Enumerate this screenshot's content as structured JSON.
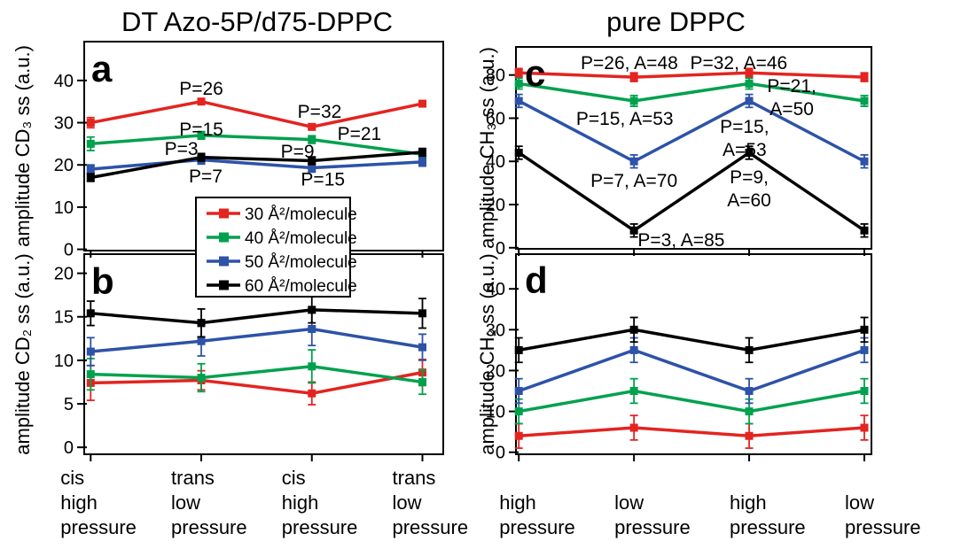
{
  "figure": {
    "column_titles": {
      "left": "DT Azo-5P/d75-DPPC",
      "right": "pure DPPC"
    },
    "legend": {
      "items": [
        {
          "label": "30 Å²/molecule",
          "color": "#e32420"
        },
        {
          "label": "40 Å²/molecule",
          "color": "#00a14e"
        },
        {
          "label": "50 Å²/molecule",
          "color": "#2d52a8"
        },
        {
          "label": "60 Å²/molecule",
          "color": "#000000"
        }
      ]
    }
  },
  "chart_data": [
    {
      "panel": "a",
      "type": "line",
      "panel_label": "a",
      "ylabel": "amplitude CD₃ ss (a.u.)",
      "ylim": [
        -0.3,
        49.2
      ],
      "yticks": [
        0,
        10,
        20,
        30,
        40
      ],
      "categories": [
        "cis\nhigh\npressure",
        "trans\nlow\npressure",
        "cis\nhigh\npressure",
        "trans\nlow\npressure"
      ],
      "x_tick_labels_visible": false,
      "series": [
        {
          "name": "30 Å²/molecule",
          "color": "#e32420",
          "values": [
            30,
            35,
            29,
            34.5
          ],
          "err": [
            1.2,
            0.6,
            0.6,
            0.6
          ]
        },
        {
          "name": "40 Å²/molecule",
          "color": "#00a14e",
          "values": [
            25,
            27,
            26,
            22.5
          ],
          "err": [
            1.6,
            0.9,
            0.9,
            0.9
          ]
        },
        {
          "name": "50 Å²/molecule",
          "color": "#2d52a8",
          "values": [
            19,
            21.2,
            19.3,
            20.7
          ],
          "err": [
            1,
            1,
            1,
            1
          ]
        },
        {
          "name": "60 Å²/molecule",
          "color": "#000000",
          "values": [
            17,
            21.8,
            21,
            23
          ],
          "err": [
            0.9,
            0.9,
            0.9,
            0.9
          ]
        }
      ],
      "annotations": [
        {
          "label": "P=26",
          "color": "#e32420",
          "xi": 1,
          "yv": 38.1
        },
        {
          "label": "P=32",
          "color": "#e32420",
          "xi": 2.07,
          "yv": 32.6
        },
        {
          "label": "P=15",
          "color": "#00a14e",
          "xi": 1,
          "yv": 28.4
        },
        {
          "label": "P=21",
          "color": "#00a14e",
          "xi": 2.43,
          "yv": 27.4
        },
        {
          "label": "P=3",
          "color": "#000000",
          "xi": 0.82,
          "yv": 23.8
        },
        {
          "label": "P=9",
          "color": "#000000",
          "xi": 1.87,
          "yv": 23.2
        },
        {
          "label": "P=7",
          "color": "#2d52a8",
          "xi": 1.04,
          "yv": 17.3
        },
        {
          "label": "P=15",
          "color": "#2d52a8",
          "xi": 2.1,
          "yv": 16.6
        }
      ]
    },
    {
      "panel": "b",
      "type": "line",
      "panel_label": "b",
      "ylabel": "amplitude CD₂ ss (a.u.)",
      "ylim": [
        -0.8,
        22.2
      ],
      "yticks": [
        0,
        5,
        10,
        15,
        20
      ],
      "categories": [
        "cis\nhigh\npressure",
        "trans\nlow\npressure",
        "cis\nhigh\npressure",
        "trans\nlow\npressure"
      ],
      "x_tick_labels_visible": true,
      "series": [
        {
          "name": "30 Å²/molecule",
          "color": "#e32420",
          "values": [
            7.4,
            7.7,
            6.2,
            8.6
          ],
          "err": [
            2,
            1.1,
            1.3,
            1.5
          ]
        },
        {
          "name": "40 Å²/molecule",
          "color": "#00a14e",
          "values": [
            8.4,
            8,
            9.3,
            7.5
          ],
          "err": [
            1.8,
            1.6,
            1.9,
            1.4
          ]
        },
        {
          "name": "50 Å²/molecule",
          "color": "#2d52a8",
          "values": [
            11,
            12.2,
            13.6,
            11.5
          ],
          "err": [
            1.6,
            1.7,
            1.9,
            1.5
          ]
        },
        {
          "name": "60 Å²/molecule",
          "color": "#000000",
          "values": [
            15.4,
            14.3,
            15.8,
            15.4
          ],
          "err": [
            1.4,
            1.6,
            1.5,
            1.7
          ]
        }
      ],
      "annotations": []
    },
    {
      "panel": "c",
      "type": "line",
      "panel_label": "c",
      "ylabel": "amplitude CH₃ ss (a.u.)",
      "ylim": [
        -0.5,
        93
      ],
      "yticks": [
        0,
        20,
        40,
        60,
        80
      ],
      "categories": [
        "high\npressure",
        "low\npressure",
        "high\npressure",
        "low\npressure"
      ],
      "x_tick_labels_visible": false,
      "series": [
        {
          "name": "30 Å²/molecule",
          "color": "#e32420",
          "values": [
            81,
            79,
            81,
            79
          ],
          "err": [
            2,
            2,
            2,
            2
          ]
        },
        {
          "name": "40 Å²/molecule",
          "color": "#00a14e",
          "values": [
            76,
            68,
            76,
            68
          ],
          "err": [
            2.5,
            2.5,
            2.5,
            2.5
          ]
        },
        {
          "name": "50 Å²/molecule",
          "color": "#2d52a8",
          "values": [
            68,
            40,
            68,
            40
          ],
          "err": [
            3,
            3,
            3,
            3
          ]
        },
        {
          "name": "60 Å²/molecule",
          "color": "#000000",
          "values": [
            44,
            8,
            44,
            8
          ],
          "err": [
            3,
            3,
            3,
            3
          ]
        }
      ],
      "annotations": [
        {
          "label": "P=26, A=48",
          "color": "#e32420",
          "xi": 0.96,
          "yv": 85.6
        },
        {
          "label": "P=32, A=46",
          "color": "#e32420",
          "xi": 1.91,
          "yv": 85.6
        },
        {
          "label": "P=15, A=53",
          "color": "#00a14e",
          "xi": 0.92,
          "yv": 59.8
        },
        {
          "label": "P=21,\nA=50",
          "color": "#00a14e",
          "xi": 2.37,
          "yv": 74.9
        },
        {
          "label": "P=7, A=70",
          "color": "#2d52a8",
          "xi": 1.0,
          "yv": 31.1
        },
        {
          "label": "P=15,\nA=53",
          "color": "#2d52a8",
          "xi": 1.96,
          "yv": 56.1
        },
        {
          "label": "P=3, A=85",
          "color": "#000000",
          "xi": 1.41,
          "yv": 3.6
        },
        {
          "label": "P=9,\nA=60",
          "color": "#000000",
          "xi": 2.0,
          "yv": 32.7
        }
      ]
    },
    {
      "panel": "d",
      "type": "line",
      "panel_label": "d",
      "ylabel": "amplitude CH₂ ss (a.u.)",
      "ylim": [
        -0.5,
        48.5
      ],
      "yticks": [
        0,
        10,
        20,
        30,
        40
      ],
      "categories": [
        "high\npressure",
        "low\npressure",
        "high\npressure",
        "low\npressure"
      ],
      "x_tick_labels_visible": true,
      "series": [
        {
          "name": "30 Å²/molecule",
          "color": "#e32420",
          "values": [
            4,
            6,
            4,
            6
          ],
          "err": [
            3,
            3,
            3,
            3
          ]
        },
        {
          "name": "40 Å²/molecule",
          "color": "#00a14e",
          "values": [
            10,
            15,
            10,
            15
          ],
          "err": [
            3,
            3,
            3,
            3
          ]
        },
        {
          "name": "50 Å²/molecule",
          "color": "#2d52a8",
          "values": [
            15,
            25,
            15,
            25
          ],
          "err": [
            3,
            3,
            3,
            3
          ]
        },
        {
          "name": "60 Å²/molecule",
          "color": "#000000",
          "values": [
            25,
            30,
            25,
            30
          ],
          "err": [
            3,
            3,
            3,
            3
          ]
        }
      ],
      "annotations": []
    }
  ]
}
